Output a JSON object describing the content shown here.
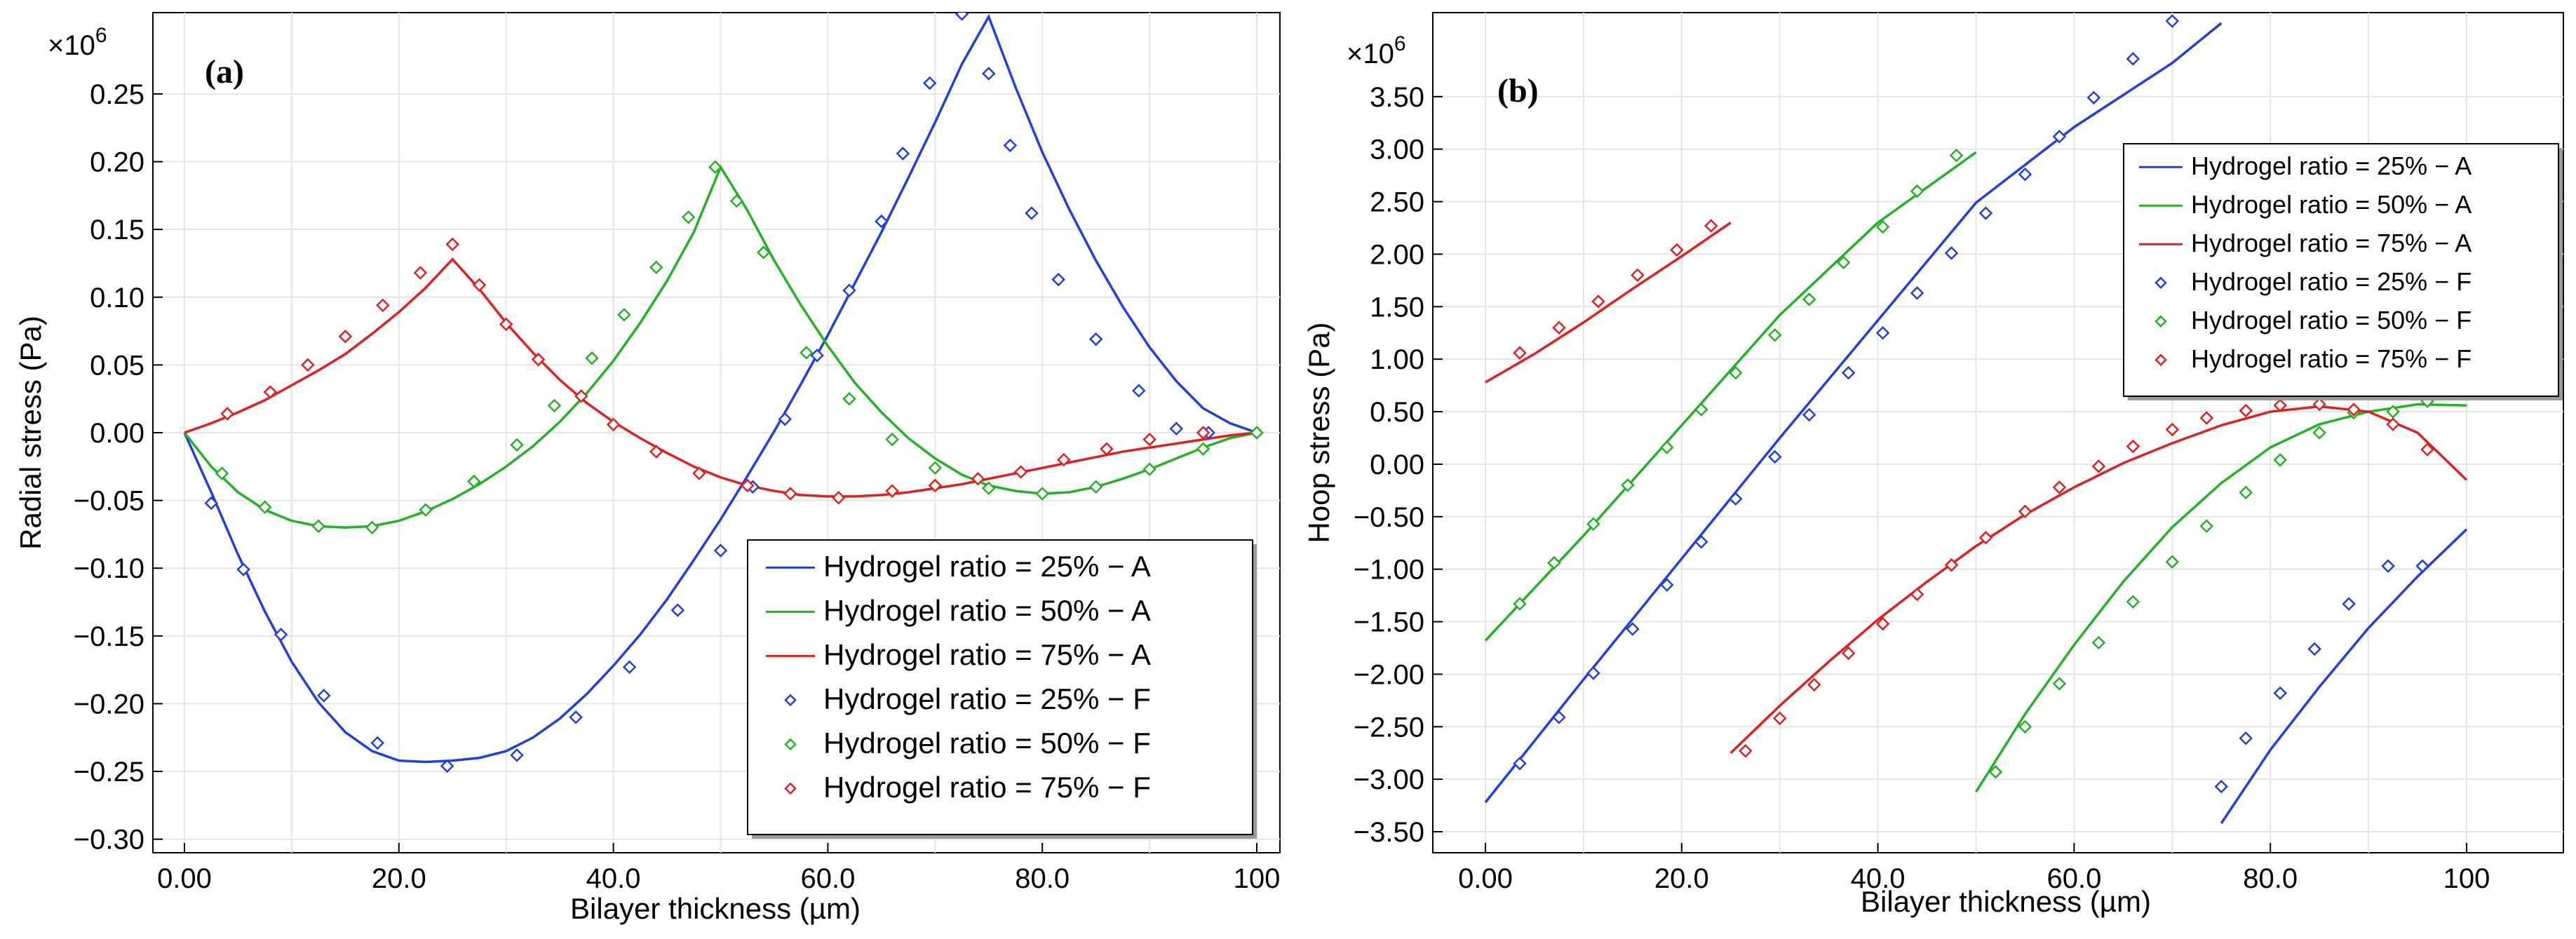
{
  "colors": {
    "blue": "#1f3fe0",
    "green": "#22b322",
    "red": "#e01f1f"
  },
  "chart_data": [
    {
      "type": "line",
      "panel_label": "(a)",
      "exponent_label": "×10",
      "exponent_power": "6",
      "xlabel": "Bilayer thickness (µm)",
      "ylabel": "Radial stress (Pa)",
      "xlim": [
        0,
        100
      ],
      "ylim": [
        -0.31,
        0.31
      ],
      "x_ticks": [
        0,
        20,
        40,
        60,
        80,
        100
      ],
      "x_tick_labels": [
        "0.00",
        "20.0",
        "40.0",
        "60.0",
        "80.0",
        "100"
      ],
      "y_ticks": [
        -0.3,
        -0.25,
        -0.2,
        -0.15,
        -0.1,
        -0.05,
        0,
        0.05,
        0.1,
        0.15,
        0.2,
        0.25
      ],
      "y_tick_labels": [
        "−0.30",
        "−0.25",
        "−0.20",
        "−0.15",
        "−0.10",
        "−0.05",
        "0.00",
        "0.05",
        "0.10",
        "0.15",
        "0.20",
        "0.25"
      ],
      "legend_position": "bottom-right",
      "legend": [
        "Hydrogel ratio = 25% − A",
        "Hydrogel ratio = 50% − A",
        "Hydrogel ratio = 75% − A",
        "Hydrogel ratio = 25% − F",
        "Hydrogel ratio = 50% − F",
        "Hydrogel ratio = 75% − F"
      ],
      "series": [
        {
          "name": "Hydrogel ratio = 25% − A",
          "kind": "line",
          "color": "blue",
          "x": [
            0,
            2.5,
            5,
            7.5,
            10,
            12.5,
            15,
            17.5,
            20,
            22.5,
            25,
            27.5,
            30,
            32.5,
            35,
            37.5,
            40,
            42.5,
            45,
            47.5,
            50,
            52.5,
            55,
            57.5,
            60,
            62.5,
            65,
            67.5,
            70,
            72.5,
            75,
            77.5,
            80,
            82.5,
            85,
            87.5,
            90,
            92.5,
            95,
            97.5,
            100
          ],
          "y": [
            0,
            -0.044,
            -0.09,
            -0.132,
            -0.169,
            -0.199,
            -0.221,
            -0.235,
            -0.242,
            -0.243,
            -0.242,
            -0.24,
            -0.235,
            -0.225,
            -0.211,
            -0.193,
            -0.172,
            -0.149,
            -0.123,
            -0.094,
            -0.064,
            -0.032,
            0.001,
            0.036,
            0.072,
            0.11,
            0.148,
            0.188,
            0.229,
            0.272,
            0.307,
            0.255,
            0.207,
            0.165,
            0.127,
            0.093,
            0.063,
            0.038,
            0.018,
            0.007,
            0
          ]
        },
        {
          "name": "Hydrogel ratio = 50% − A",
          "kind": "line",
          "color": "green",
          "x": [
            0,
            2.5,
            5,
            7.5,
            10,
            12.5,
            15,
            17.5,
            20,
            22.5,
            25,
            27.5,
            30,
            32.5,
            35,
            37.5,
            40,
            42.5,
            45,
            47.5,
            50,
            52.5,
            55,
            57.5,
            60,
            62.5,
            65,
            67.5,
            70,
            72.5,
            75,
            77.5,
            80,
            82.5,
            85,
            87.5,
            90,
            92.5,
            95,
            97.5,
            100
          ],
          "y": [
            0,
            -0.025,
            -0.044,
            -0.057,
            -0.065,
            -0.069,
            -0.07,
            -0.069,
            -0.065,
            -0.058,
            -0.049,
            -0.038,
            -0.025,
            -0.01,
            0.008,
            0.029,
            0.053,
            0.081,
            0.112,
            0.148,
            0.196,
            0.164,
            0.127,
            0.094,
            0.064,
            0.037,
            0.015,
            -0.004,
            -0.019,
            -0.031,
            -0.039,
            -0.043,
            -0.045,
            -0.044,
            -0.04,
            -0.034,
            -0.027,
            -0.019,
            -0.011,
            -0.004,
            0
          ]
        },
        {
          "name": "Hydrogel ratio = 75% − A",
          "kind": "line",
          "color": "red",
          "x": [
            0,
            2.5,
            5,
            7.5,
            10,
            12.5,
            15,
            17.5,
            20,
            22.5,
            25,
            27.5,
            30,
            32.5,
            35,
            37.5,
            40,
            42.5,
            45,
            47.5,
            50,
            52.5,
            55,
            57.5,
            60,
            62.5,
            65,
            67.5,
            70,
            72.5,
            75,
            77.5,
            80,
            82.5,
            85,
            87.5,
            90,
            92.5,
            95,
            97.5,
            100
          ],
          "y": [
            0,
            0.007,
            0.015,
            0.024,
            0.035,
            0.046,
            0.058,
            0.073,
            0.089,
            0.107,
            0.128,
            0.106,
            0.081,
            0.059,
            0.039,
            0.022,
            0.008,
            -0.004,
            -0.015,
            -0.025,
            -0.033,
            -0.039,
            -0.043,
            -0.046,
            -0.047,
            -0.047,
            -0.046,
            -0.044,
            -0.041,
            -0.038,
            -0.034,
            -0.03,
            -0.026,
            -0.022,
            -0.018,
            -0.014,
            -0.011,
            -0.008,
            -0.005,
            -0.002,
            0
          ]
        },
        {
          "name": "Hydrogel ratio = 25% − F",
          "kind": "markers",
          "color": "blue",
          "x": [
            2.5,
            5.5,
            9,
            13,
            18,
            24.5,
            31,
            36.5,
            41.5,
            46,
            50,
            53,
            56,
            59,
            62,
            65,
            67,
            69.5,
            72.5,
            75,
            77,
            79,
            81.5,
            85,
            89,
            92.5,
            95.5,
            100
          ],
          "y": [
            -0.052,
            -0.101,
            -0.149,
            -0.194,
            -0.229,
            -0.246,
            -0.238,
            -0.21,
            -0.173,
            -0.131,
            -0.087,
            -0.04,
            0.01,
            0.057,
            0.105,
            0.156,
            0.206,
            0.258,
            0.309,
            0.265,
            0.212,
            0.162,
            0.113,
            0.069,
            0.031,
            0.003,
            0.0,
            0.0
          ]
        },
        {
          "name": "Hydrogel ratio = 50% − F",
          "kind": "markers",
          "color": "green",
          "x": [
            3.5,
            7.5,
            12.5,
            17.5,
            22.5,
            27,
            31,
            34.5,
            38,
            41,
            44,
            47,
            49.5,
            51.5,
            54,
            58,
            62,
            66,
            70,
            75,
            80,
            85,
            90,
            95,
            100
          ],
          "y": [
            -0.03,
            -0.055,
            -0.069,
            -0.07,
            -0.057,
            -0.036,
            -0.009,
            0.02,
            0.055,
            0.087,
            0.122,
            0.159,
            0.196,
            0.171,
            0.133,
            0.059,
            0.025,
            -0.005,
            -0.026,
            -0.041,
            -0.045,
            -0.04,
            -0.027,
            -0.012,
            0
          ]
        },
        {
          "name": "Hydrogel ratio = 75% − F",
          "kind": "markers",
          "color": "red",
          "x": [
            4,
            8,
            11.5,
            15,
            18.5,
            22,
            25,
            27.5,
            30,
            33,
            37,
            40,
            44,
            48,
            52.5,
            56.5,
            61,
            66,
            70,
            74,
            78,
            82,
            86,
            90,
            95
          ],
          "y": [
            0.014,
            0.03,
            0.05,
            0.071,
            0.094,
            0.118,
            0.139,
            0.109,
            0.08,
            0.054,
            0.027,
            0.006,
            -0.014,
            -0.03,
            -0.039,
            -0.045,
            -0.048,
            -0.043,
            -0.039,
            -0.034,
            -0.029,
            -0.02,
            -0.012,
            -0.005,
            0
          ]
        }
      ]
    },
    {
      "type": "line",
      "panel_label": "(b)",
      "exponent_label": "×10",
      "exponent_power": "6",
      "xlabel": "Bilayer thickness (µm)",
      "ylabel": "Hoop stress (Pa)",
      "xlim": [
        0,
        110
      ],
      "ylim": [
        -3.7,
        4.3
      ],
      "x_ticks": [
        0,
        20,
        40,
        60,
        80,
        100
      ],
      "x_tick_labels": [
        "0.00",
        "20.0",
        "40.0",
        "60.0",
        "80.0",
        "100"
      ],
      "y_ticks": [
        -3.5,
        -3,
        -2.5,
        -2,
        -1.5,
        -1,
        -0.5,
        0,
        0.5,
        1,
        1.5,
        2,
        2.5,
        3,
        3.5
      ],
      "y_tick_labels": [
        "−3.50",
        "−3.00",
        "−2.50",
        "−2.00",
        "−1.50",
        "−1.00",
        "−0.50",
        "0.00",
        "0.50",
        "1.00",
        "1.50",
        "2.00",
        "2.50",
        "3.00",
        "3.50"
      ],
      "legend_position": "top-right",
      "legend": [
        "Hydrogel ratio = 25% − A",
        "Hydrogel ratio = 50% − A",
        "Hydrogel ratio = 75% − A",
        "Hydrogel ratio = 25% − F",
        "Hydrogel ratio = 50% − F",
        "Hydrogel ratio = 75% − F"
      ],
      "series": [
        {
          "name": "Hydrogel ratio = 25% − A",
          "kind": "line",
          "color": "blue",
          "segments": [
            {
              "x": [
                0,
                10,
                20,
                30,
                40,
                50,
                60,
                70,
                75
              ],
              "y": [
                -3.22,
                -2.05,
                -0.9,
                0.25,
                1.37,
                2.49,
                3.21,
                3.82,
                4.2
              ]
            },
            {
              "x": [
                75,
                80,
                85,
                90,
                95,
                100
              ],
              "y": [
                -3.42,
                -2.72,
                -2.12,
                -1.56,
                -1.07,
                -0.62
              ]
            }
          ]
        },
        {
          "name": "Hydrogel ratio = 50% − A",
          "kind": "line",
          "color": "green",
          "segments": [
            {
              "x": [
                0,
                10,
                20,
                30,
                40,
                50
              ],
              "y": [
                -1.68,
                -0.68,
                0.37,
                1.42,
                2.3,
                2.97
              ]
            },
            {
              "x": [
                50,
                55,
                60,
                65,
                70,
                75,
                80,
                85,
                90,
                95,
                100
              ],
              "y": [
                -3.12,
                -2.38,
                -1.72,
                -1.12,
                -0.6,
                -0.18,
                0.16,
                0.38,
                0.5,
                0.57,
                0.56
              ]
            }
          ]
        },
        {
          "name": "Hydrogel ratio = 75% − A",
          "kind": "line",
          "color": "red",
          "segments": [
            {
              "x": [
                0,
                5,
                10,
                15,
                20,
                25
              ],
              "y": [
                0.78,
                1.05,
                1.35,
                1.67,
                1.98,
                2.3
              ]
            },
            {
              "x": [
                25,
                30,
                35,
                40,
                45,
                50,
                55,
                60,
                65,
                70,
                75,
                80,
                85,
                90,
                95,
                100
              ],
              "y": [
                -2.75,
                -2.3,
                -1.88,
                -1.48,
                -1.12,
                -0.78,
                -0.48,
                -0.22,
                0.01,
                0.2,
                0.37,
                0.5,
                0.55,
                0.5,
                0.3,
                -0.15
              ]
            }
          ]
        },
        {
          "name": "Hydrogel ratio = 25% − F",
          "kind": "markers",
          "color": "blue",
          "x": [
            3.5,
            7.5,
            11,
            15,
            18.5,
            22,
            25.5,
            29.5,
            33,
            37,
            40.5,
            44,
            47.5,
            51,
            55,
            58.5,
            62,
            66,
            70,
            75,
            77.5,
            81,
            84.5,
            88,
            92,
            95.5
          ],
          "y": [
            -2.85,
            -2.41,
            -1.99,
            -1.57,
            -1.15,
            -0.74,
            -0.33,
            0.07,
            0.47,
            0.87,
            1.25,
            1.63,
            2.01,
            2.39,
            2.76,
            3.12,
            3.49,
            3.86,
            4.22,
            -3.07,
            -2.61,
            -2.18,
            -1.76,
            -1.33,
            -0.97,
            -0.97
          ]
        },
        {
          "name": "Hydrogel ratio = 50% − F",
          "kind": "markers",
          "color": "green",
          "x": [
            3.5,
            7,
            11,
            14.5,
            18.5,
            22,
            25.5,
            29.5,
            33,
            36.5,
            40.5,
            44,
            48,
            52,
            55,
            58.5,
            62.5,
            66,
            70,
            73.5,
            77.5,
            81,
            85,
            88.5,
            92.5,
            96
          ],
          "y": [
            -1.33,
            -0.94,
            -0.57,
            -0.2,
            0.16,
            0.52,
            0.87,
            1.23,
            1.57,
            1.92,
            2.26,
            2.6,
            2.94,
            -2.93,
            -2.5,
            -2.09,
            -1.7,
            -1.31,
            -0.93,
            -0.59,
            -0.27,
            0.04,
            0.3,
            0.49,
            0.5,
            0.6
          ]
        },
        {
          "name": "Hydrogel ratio = 75% − F",
          "kind": "markers",
          "color": "red",
          "x": [
            3.5,
            7.5,
            11.5,
            15.5,
            19.5,
            23,
            26.5,
            30,
            33.5,
            37,
            40.5,
            44,
            47.5,
            51,
            55,
            58.5,
            62.5,
            66,
            70,
            73.5,
            77.5,
            81,
            85,
            88.5,
            92.5,
            96
          ],
          "y": [
            1.06,
            1.3,
            1.55,
            1.8,
            2.04,
            2.27,
            -2.73,
            -2.42,
            -2.1,
            -1.8,
            -1.52,
            -1.24,
            -0.96,
            -0.7,
            -0.45,
            -0.22,
            -0.02,
            0.17,
            0.33,
            0.44,
            0.51,
            0.56,
            0.57,
            0.52,
            0.38,
            0.14
          ]
        }
      ]
    }
  ]
}
